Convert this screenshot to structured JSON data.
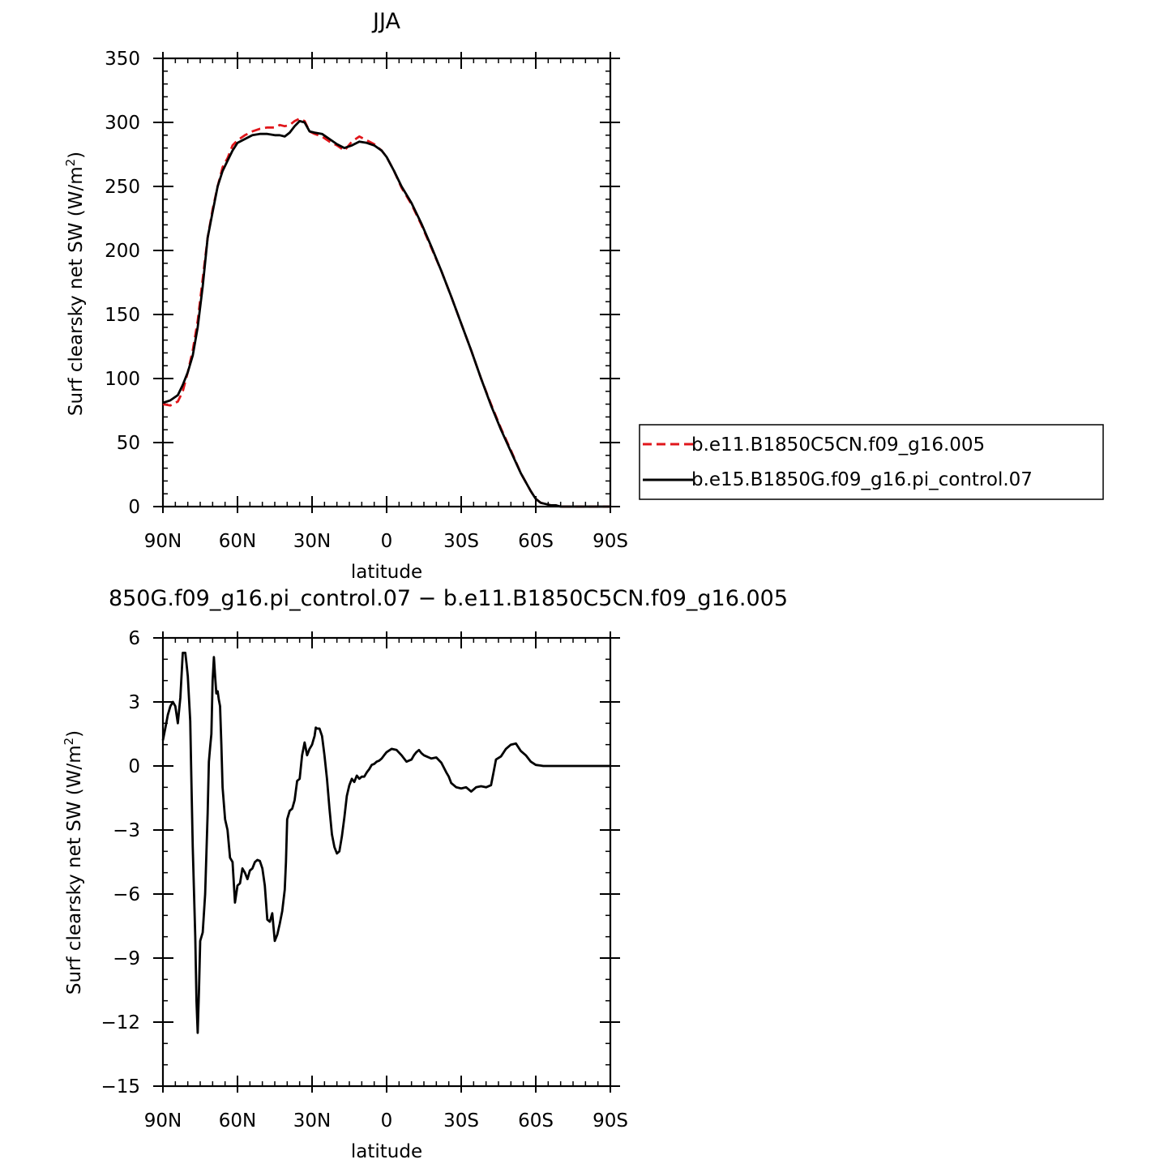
{
  "chart_data": [
    {
      "type": "line",
      "title": "JJA",
      "xlabel": "latitude",
      "ylabel_main": "Surf clearsky net SW (W/m",
      "ylabel_sup": "2",
      "ylabel_close": ")",
      "xlim": [
        90,
        -90
      ],
      "ylim": [
        0,
        350
      ],
      "x_ticks": [
        {
          "value": 90,
          "label": "90N"
        },
        {
          "value": 60,
          "label": "60N"
        },
        {
          "value": 30,
          "label": "30N"
        },
        {
          "value": 0,
          "label": "0"
        },
        {
          "value": -30,
          "label": "30S"
        },
        {
          "value": -60,
          "label": "60S"
        },
        {
          "value": -90,
          "label": "90S"
        }
      ],
      "y_ticks": [
        {
          "value": 0,
          "label": "0"
        },
        {
          "value": 50,
          "label": "50"
        },
        {
          "value": 100,
          "label": "100"
        },
        {
          "value": 150,
          "label": "150"
        },
        {
          "value": 200,
          "label": "200"
        },
        {
          "value": 250,
          "label": "250"
        },
        {
          "value": 300,
          "label": "300"
        },
        {
          "value": 350,
          "label": "350"
        }
      ],
      "legend_position": "right",
      "series": [
        {
          "name": "b.e11.B1850C5CN.f09_g16.005",
          "color": "#e0161b",
          "dash": true,
          "x": [
            90,
            87,
            84,
            82,
            80,
            78,
            76,
            74,
            72,
            70,
            68,
            66,
            64,
            62,
            60,
            57,
            54,
            51,
            48,
            45,
            43,
            41,
            39,
            37,
            35,
            33,
            31,
            29,
            26,
            23,
            20,
            17,
            14,
            11,
            8,
            5,
            2,
            0,
            -3,
            -6,
            -10,
            -14,
            -18,
            -22,
            -26,
            -30,
            -34,
            -38,
            -42,
            -46,
            -50,
            -54,
            -58,
            -60,
            -62,
            -64,
            -66,
            -68,
            -70,
            -73,
            -76,
            -80,
            -85,
            -90
          ],
          "values": [
            80,
            79,
            82,
            90,
            105,
            122,
            145,
            178,
            210,
            232,
            250,
            265,
            272,
            282,
            286,
            290,
            293,
            295,
            296,
            296,
            298,
            297,
            298,
            301,
            303,
            301,
            293,
            291,
            289,
            285,
            282,
            278,
            285,
            289,
            286,
            283,
            278,
            273,
            262,
            249,
            236,
            220,
            202,
            184,
            164,
            143,
            122,
            100,
            80,
            61,
            44,
            26,
            12,
            6,
            3,
            2,
            1,
            1,
            0,
            0,
            0,
            0,
            0,
            0
          ]
        },
        {
          "name": "b.e15.B1850G.f09_g16.pi_control.07",
          "color": "#000000",
          "dash": false,
          "x": [
            90,
            87,
            84,
            82,
            80,
            78,
            76,
            74,
            72,
            70,
            68,
            66,
            64,
            62,
            60,
            57,
            54,
            51,
            48,
            45,
            43,
            41,
            39,
            37,
            35,
            33,
            31,
            29,
            26,
            23,
            20,
            17,
            14,
            11,
            8,
            5,
            2,
            0,
            -3,
            -6,
            -10,
            -14,
            -18,
            -22,
            -26,
            -30,
            -34,
            -38,
            -42,
            -46,
            -50,
            -54,
            -58,
            -60,
            -62,
            -64,
            -66,
            -68,
            -70,
            -73,
            -76,
            -80,
            -85,
            -90
          ],
          "values": [
            81,
            83,
            87,
            95,
            105,
            118,
            140,
            172,
            210,
            230,
            250,
            262,
            270,
            278,
            284,
            287,
            290,
            291,
            291,
            290,
            290,
            289,
            292,
            297,
            301,
            300,
            293,
            292,
            291,
            287,
            283,
            280,
            282,
            285,
            284,
            282,
            278,
            273,
            262,
            250,
            237,
            221,
            203,
            184,
            164,
            143,
            122,
            100,
            79,
            60,
            43,
            26,
            12,
            6,
            3,
            2,
            1,
            1,
            0,
            0,
            0,
            0,
            0,
            0
          ]
        }
      ]
    },
    {
      "type": "line",
      "title": "850G.f09_g16.pi_control.07 − b.e11.B1850C5CN.f09_g16.005",
      "xlabel": "latitude",
      "ylabel_main": "Surf clearsky net SW (W/m",
      "ylabel_sup": "2",
      "ylabel_close": ")",
      "xlim": [
        90,
        -90
      ],
      "ylim": [
        -15,
        6
      ],
      "x_ticks": [
        {
          "value": 90,
          "label": "90N"
        },
        {
          "value": 60,
          "label": "60N"
        },
        {
          "value": 30,
          "label": "30N"
        },
        {
          "value": 0,
          "label": "0"
        },
        {
          "value": -30,
          "label": "30S"
        },
        {
          "value": -60,
          "label": "60S"
        },
        {
          "value": -90,
          "label": "90S"
        }
      ],
      "y_ticks": [
        {
          "value": 6,
          "label": "6"
        },
        {
          "value": 3,
          "label": "3"
        },
        {
          "value": 0,
          "label": "0"
        },
        {
          "value": -3,
          "label": "−3"
        },
        {
          "value": -6,
          "label": "−6"
        },
        {
          "value": -9,
          "label": "−9"
        },
        {
          "value": -12,
          "label": "−12"
        },
        {
          "value": -15,
          "label": "−15"
        }
      ],
      "series": [
        {
          "name": "",
          "color": "#000000",
          "dash": false,
          "x": [
            90,
            89,
            88,
            87,
            86,
            85,
            84,
            83,
            82,
            81,
            80.5,
            80,
            79,
            78.5,
            78,
            77,
            76.5,
            76,
            75.5,
            75,
            74,
            73,
            72,
            71.5,
            71,
            70.5,
            70,
            69.5,
            69,
            68.5,
            68,
            67.5,
            67,
            66.5,
            66,
            65,
            64,
            63,
            62,
            61,
            60,
            59,
            58,
            57,
            56,
            55,
            54,
            53,
            52,
            51,
            50,
            49,
            48,
            47,
            46,
            45,
            44,
            43,
            42,
            41,
            40.5,
            40,
            39,
            38,
            37,
            36,
            35,
            34,
            33,
            32,
            31,
            30.5,
            30,
            29.5,
            29,
            28.5,
            28,
            27,
            26,
            25,
            24,
            23,
            22,
            21,
            20,
            19,
            18,
            17,
            16,
            15,
            14,
            13,
            12,
            11,
            10,
            9,
            8,
            7,
            6,
            5,
            4,
            3,
            2,
            1,
            0,
            -2,
            -4,
            -6,
            -8,
            -10,
            -11,
            -12,
            -13,
            -14,
            -15,
            -16,
            -17,
            -18,
            -20,
            -22,
            -24,
            -25,
            -26,
            -28,
            -30,
            -32,
            -34,
            -36,
            -38,
            -40,
            -42,
            -43,
            -44,
            -46,
            -48,
            -50,
            -52,
            -54,
            -56,
            -58,
            -60,
            -62,
            -63,
            -64,
            -66,
            -68,
            -70,
            -75,
            -80,
            -85,
            -90
          ],
          "values": [
            1.2,
            1.8,
            2.4,
            2.8,
            3.0,
            2.8,
            2.0,
            3.2,
            5.3,
            5.3,
            4.8,
            4.2,
            2.1,
            -1.0,
            -3.8,
            -8.0,
            -11.0,
            -12.5,
            -10.5,
            -8.2,
            -7.8,
            -6.0,
            -2.2,
            0.2,
            0.9,
            1.5,
            4.0,
            5.1,
            4.2,
            3.4,
            3.5,
            3.1,
            2.8,
            1.0,
            -1.0,
            -2.5,
            -3.0,
            -4.3,
            -4.5,
            -6.4,
            -5.6,
            -5.5,
            -4.8,
            -5.0,
            -5.3,
            -4.9,
            -4.8,
            -4.5,
            -4.4,
            -4.45,
            -4.8,
            -5.6,
            -7.2,
            -7.3,
            -6.9,
            -8.2,
            -7.9,
            -7.4,
            -6.8,
            -5.8,
            -4.5,
            -2.5,
            -2.1,
            -2.0,
            -1.6,
            -0.7,
            -0.6,
            0.5,
            1.1,
            0.5,
            0.8,
            0.9,
            1.0,
            1.2,
            1.4,
            1.8,
            1.75,
            1.75,
            1.4,
            0.5,
            -0.6,
            -2.0,
            -3.2,
            -3.8,
            -4.1,
            -4.0,
            -3.3,
            -2.4,
            -1.4,
            -0.9,
            -0.6,
            -0.75,
            -0.45,
            -0.6,
            -0.5,
            -0.5,
            -0.3,
            -0.15,
            0.05,
            0.1,
            0.2,
            0.25,
            0.35,
            0.5,
            0.65,
            0.8,
            0.75,
            0.5,
            0.2,
            0.3,
            0.5,
            0.65,
            0.75,
            0.6,
            0.5,
            0.45,
            0.4,
            0.35,
            0.4,
            0.15,
            -0.3,
            -0.5,
            -0.8,
            -1.0,
            -1.05,
            -1.0,
            -1.2,
            -1.0,
            -0.95,
            -1.0,
            -0.9,
            -0.3,
            0.3,
            0.45,
            0.8,
            1.0,
            1.05,
            0.7,
            0.5,
            0.2,
            0.05,
            0.02,
            0.0,
            0.0,
            0.0,
            0.0,
            0.0,
            0.0,
            0.0,
            0.0,
            0.0
          ]
        }
      ]
    }
  ]
}
